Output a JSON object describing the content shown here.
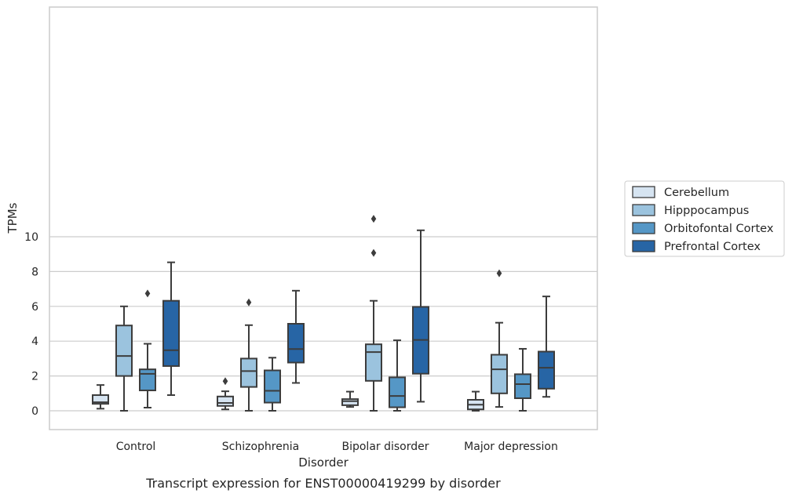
{
  "caption": "Transcript expression for ENST00000419299 by disorder",
  "chart_data": {
    "type": "box",
    "xlabel": "Disorder",
    "ylabel": "TPMs",
    "ylim": [
      -0.5,
      11.6
    ],
    "yticks": [
      0,
      2,
      4,
      6,
      8,
      10
    ],
    "grid": "horizontal",
    "legend_position": "right",
    "categories": [
      "Control",
      "Schizophrenia",
      "Bipolar disorder",
      "Major depression"
    ],
    "series": [
      {
        "name": "Cerebellum",
        "color": "#d6e4f1",
        "boxes": [
          {
            "whisker_low": 0.12,
            "q1": 0.4,
            "median": 0.49,
            "q3": 0.9,
            "whisker_high": 1.48,
            "outliers": []
          },
          {
            "whisker_low": 0.08,
            "q1": 0.28,
            "median": 0.45,
            "q3": 0.82,
            "whisker_high": 1.12,
            "outliers": [
              1.7
            ]
          },
          {
            "whisker_low": 0.22,
            "q1": 0.32,
            "median": 0.55,
            "q3": 0.67,
            "whisker_high": 1.1,
            "outliers": []
          },
          {
            "whisker_low": 0.0,
            "q1": 0.08,
            "median": 0.35,
            "q3": 0.63,
            "whisker_high": 1.1,
            "outliers": []
          }
        ]
      },
      {
        "name": "Hipppocampus",
        "color": "#9bc3de",
        "boxes": [
          {
            "whisker_low": 0.0,
            "q1": 2.0,
            "median": 3.15,
            "q3": 4.9,
            "whisker_high": 6.0,
            "outliers": []
          },
          {
            "whisker_low": 0.0,
            "q1": 1.37,
            "median": 2.28,
            "q3": 3.0,
            "whisker_high": 4.92,
            "outliers": [
              6.23
            ]
          },
          {
            "whisker_low": 0.0,
            "q1": 1.72,
            "median": 3.37,
            "q3": 3.82,
            "whisker_high": 6.32,
            "outliers": [
              9.07,
              11.03
            ]
          },
          {
            "whisker_low": 0.22,
            "q1": 1.0,
            "median": 2.38,
            "q3": 3.22,
            "whisker_high": 5.06,
            "outliers": [
              7.9
            ]
          }
        ]
      },
      {
        "name": "Orbitofontal Cortex",
        "color": "#5597c6",
        "boxes": [
          {
            "whisker_low": 0.18,
            "q1": 1.17,
            "median": 2.12,
            "q3": 2.38,
            "whisker_high": 3.85,
            "outliers": [
              6.74
            ]
          },
          {
            "whisker_low": 0.0,
            "q1": 0.47,
            "median": 1.15,
            "q3": 2.32,
            "whisker_high": 3.05,
            "outliers": []
          },
          {
            "whisker_low": 0.0,
            "q1": 0.2,
            "median": 0.85,
            "q3": 1.92,
            "whisker_high": 4.05,
            "outliers": []
          },
          {
            "whisker_low": 0.0,
            "q1": 0.72,
            "median": 1.53,
            "q3": 2.1,
            "whisker_high": 3.56,
            "outliers": []
          }
        ]
      },
      {
        "name": "Prefrontal Cortex",
        "color": "#2765a5",
        "boxes": [
          {
            "whisker_low": 0.9,
            "q1": 2.57,
            "median": 3.48,
            "q3": 6.32,
            "whisker_high": 8.53,
            "outliers": []
          },
          {
            "whisker_low": 1.6,
            "q1": 2.77,
            "median": 3.55,
            "q3": 5.0,
            "whisker_high": 6.9,
            "outliers": []
          },
          {
            "whisker_low": 0.52,
            "q1": 2.13,
            "median": 4.07,
            "q3": 5.97,
            "whisker_high": 10.37,
            "outliers": []
          },
          {
            "whisker_low": 0.8,
            "q1": 1.27,
            "median": 2.47,
            "q3": 3.4,
            "whisker_high": 6.57,
            "outliers": []
          }
        ]
      }
    ]
  }
}
